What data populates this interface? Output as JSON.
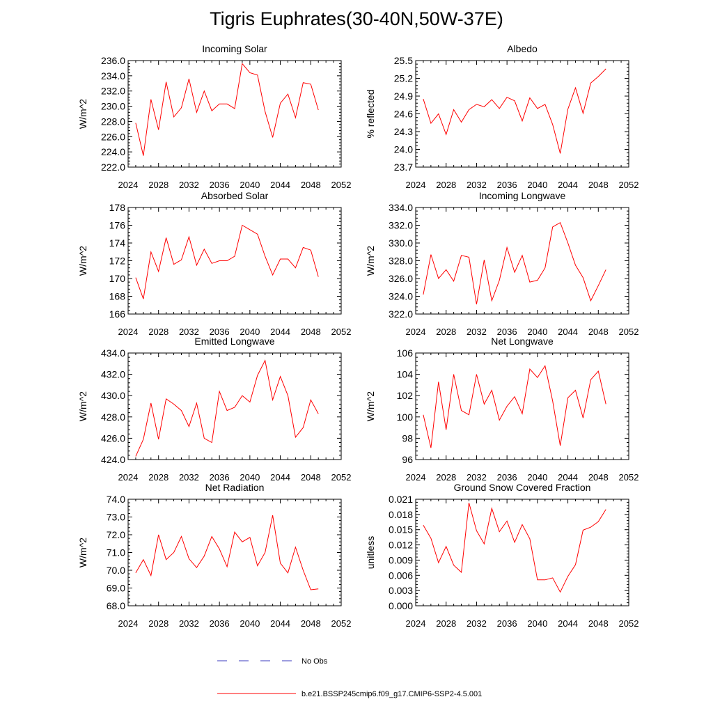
{
  "title": "Tigris Euphrates(30-40N,50W-37E)",
  "colors": {
    "series": "#ff0000",
    "obs": "#3b3bbf",
    "axis": "#000000"
  },
  "legend": {
    "obs_label": "No Obs",
    "model_label": "b.e21.BSSP245cmip6.f09_g17.CMIP6-SSP2-4.5.001"
  },
  "chart_data": [
    {
      "type": "line",
      "title": "Incoming Solar",
      "ylabel": "W/m^2",
      "xlim": [
        2024,
        2052
      ],
      "ylim": [
        222.0,
        236.0
      ],
      "xticks": [
        "2024",
        "2028",
        "2032",
        "2036",
        "2040",
        "2044",
        "2048",
        "2052"
      ],
      "yticks": [
        "222.0",
        "224.0",
        "226.0",
        "228.0",
        "230.0",
        "232.0",
        "234.0",
        "236.0"
      ],
      "x": [
        2025,
        2026,
        2027,
        2028,
        2029,
        2030,
        2031,
        2032,
        2033,
        2034,
        2035,
        2036,
        2037,
        2038,
        2039,
        2040,
        2041,
        2042,
        2043,
        2044,
        2045,
        2046,
        2047,
        2048,
        2049
      ],
      "series": [
        {
          "values": [
            227.8,
            223.5,
            230.9,
            226.9,
            233.2,
            228.6,
            229.8,
            233.6,
            229.2,
            232.0,
            229.4,
            230.3,
            230.3,
            229.7,
            235.6,
            234.4,
            234.1,
            229.3,
            225.9,
            230.4,
            231.6,
            228.5,
            233.1,
            232.9,
            229.5
          ]
        }
      ]
    },
    {
      "type": "line",
      "title": "Albedo",
      "ylabel": "% reflected",
      "xlim": [
        2024,
        2052
      ],
      "ylim": [
        23.7,
        25.5
      ],
      "xticks": [
        "2024",
        "2028",
        "2032",
        "2036",
        "2040",
        "2044",
        "2048",
        "2052"
      ],
      "yticks": [
        "23.7",
        "24.0",
        "24.3",
        "24.6",
        "24.9",
        "25.2",
        "25.5"
      ],
      "x": [
        2025,
        2026,
        2027,
        2028,
        2029,
        2030,
        2031,
        2032,
        2033,
        2034,
        2035,
        2036,
        2037,
        2038,
        2039,
        2040,
        2041,
        2042,
        2043,
        2044,
        2045,
        2046,
        2047,
        2048,
        2049
      ],
      "series": [
        {
          "values": [
            24.85,
            24.44,
            24.6,
            24.25,
            24.67,
            24.46,
            24.67,
            24.76,
            24.72,
            24.84,
            24.69,
            24.88,
            24.82,
            24.48,
            24.87,
            24.69,
            24.76,
            24.42,
            23.93,
            24.68,
            25.04,
            24.61,
            25.12,
            25.23,
            25.36
          ]
        }
      ]
    },
    {
      "type": "line",
      "title": "Absorbed Solar",
      "ylabel": "W/m^2",
      "xlim": [
        2024,
        2052
      ],
      "ylim": [
        166,
        178
      ],
      "xticks": [
        "2024",
        "2028",
        "2032",
        "2036",
        "2040",
        "2044",
        "2048",
        "2052"
      ],
      "yticks": [
        "166",
        "168",
        "170",
        "172",
        "174",
        "176",
        "178"
      ],
      "x": [
        2025,
        2026,
        2027,
        2028,
        2029,
        2030,
        2031,
        2032,
        2033,
        2034,
        2035,
        2036,
        2037,
        2038,
        2039,
        2040,
        2041,
        2042,
        2043,
        2044,
        2045,
        2046,
        2047,
        2048,
        2049
      ],
      "series": [
        {
          "values": [
            170.1,
            167.7,
            173.0,
            170.8,
            174.6,
            171.6,
            172.1,
            174.7,
            171.5,
            173.3,
            171.7,
            172.0,
            172.0,
            172.5,
            176.0,
            175.5,
            175.0,
            172.5,
            170.4,
            172.2,
            172.2,
            171.2,
            173.5,
            173.2,
            170.2
          ]
        }
      ]
    },
    {
      "type": "line",
      "title": "Incoming Longwave",
      "ylabel": "W/m^2",
      "xlim": [
        2024,
        2052
      ],
      "ylim": [
        322.0,
        334.0
      ],
      "xticks": [
        "2024",
        "2028",
        "2032",
        "2036",
        "2040",
        "2044",
        "2048",
        "2052"
      ],
      "yticks": [
        "322.0",
        "324.0",
        "326.0",
        "328.0",
        "330.0",
        "332.0",
        "334.0"
      ],
      "x": [
        2025,
        2026,
        2027,
        2028,
        2029,
        2030,
        2031,
        2032,
        2033,
        2034,
        2035,
        2036,
        2037,
        2038,
        2039,
        2040,
        2041,
        2042,
        2043,
        2044,
        2045,
        2046,
        2047,
        2048,
        2049
      ],
      "series": [
        {
          "values": [
            324.2,
            328.7,
            326.0,
            327.0,
            325.7,
            328.6,
            328.4,
            323.1,
            328.1,
            323.5,
            325.8,
            329.5,
            326.7,
            328.6,
            325.6,
            325.8,
            327.2,
            331.8,
            332.3,
            330.0,
            327.5,
            326.1,
            323.5,
            325.2,
            327.0
          ]
        }
      ]
    },
    {
      "type": "line",
      "title": "Emitted Longwave",
      "ylabel": "W/m^2",
      "xlim": [
        2024,
        2052
      ],
      "ylim": [
        424.0,
        434.0
      ],
      "xticks": [
        "2024",
        "2028",
        "2032",
        "2036",
        "2040",
        "2044",
        "2048",
        "2052"
      ],
      "yticks": [
        "424.0",
        "426.0",
        "428.0",
        "430.0",
        "432.0",
        "434.0"
      ],
      "x": [
        2025,
        2026,
        2027,
        2028,
        2029,
        2030,
        2031,
        2032,
        2033,
        2034,
        2035,
        2036,
        2037,
        2038,
        2039,
        2040,
        2041,
        2042,
        2043,
        2044,
        2045,
        2046,
        2047,
        2048,
        2049
      ],
      "series": [
        {
          "values": [
            424.3,
            425.9,
            429.3,
            425.9,
            429.7,
            429.2,
            428.6,
            427.1,
            429.3,
            426.0,
            425.6,
            430.4,
            428.6,
            428.9,
            430.0,
            429.4,
            431.9,
            433.3,
            429.6,
            431.8,
            430.0,
            426.1,
            427.0,
            429.6,
            428.3
          ]
        }
      ]
    },
    {
      "type": "line",
      "title": "Net Longwave",
      "ylabel": "W/m^2",
      "xlim": [
        2024,
        2052
      ],
      "ylim": [
        96,
        106
      ],
      "xticks": [
        "2024",
        "2028",
        "2032",
        "2036",
        "2040",
        "2044",
        "2048",
        "2052"
      ],
      "yticks": [
        "96",
        "98",
        "100",
        "102",
        "104",
        "106"
      ],
      "x": [
        2025,
        2026,
        2027,
        2028,
        2029,
        2030,
        2031,
        2032,
        2033,
        2034,
        2035,
        2036,
        2037,
        2038,
        2039,
        2040,
        2041,
        2042,
        2043,
        2044,
        2045,
        2046,
        2047,
        2048,
        2049
      ],
      "series": [
        {
          "values": [
            100.2,
            97.1,
            103.3,
            98.8,
            104.0,
            100.6,
            100.2,
            104.0,
            101.2,
            102.5,
            99.7,
            101.0,
            101.9,
            100.3,
            104.5,
            103.7,
            104.8,
            101.5,
            97.3,
            101.8,
            102.5,
            99.9,
            103.5,
            104.3,
            101.2
          ]
        }
      ]
    },
    {
      "type": "line",
      "title": "Net Radiation",
      "ylabel": "W/m^2",
      "xlim": [
        2024,
        2052
      ],
      "ylim": [
        68.0,
        74.0
      ],
      "xticks": [
        "2024",
        "2028",
        "2032",
        "2036",
        "2040",
        "2044",
        "2048",
        "2052"
      ],
      "yticks": [
        "68.0",
        "69.0",
        "70.0",
        "71.0",
        "72.0",
        "73.0",
        "74.0"
      ],
      "x": [
        2025,
        2026,
        2027,
        2028,
        2029,
        2030,
        2031,
        2032,
        2033,
        2034,
        2035,
        2036,
        2037,
        2038,
        2039,
        2040,
        2041,
        2042,
        2043,
        2044,
        2045,
        2046,
        2047,
        2048,
        2049
      ],
      "series": [
        {
          "values": [
            69.85,
            70.6,
            69.7,
            72.0,
            70.6,
            71.0,
            71.9,
            70.65,
            70.15,
            70.8,
            71.9,
            71.2,
            70.2,
            72.15,
            71.6,
            71.85,
            70.25,
            71.0,
            73.1,
            70.4,
            69.85,
            71.3,
            70.0,
            68.9,
            68.95
          ]
        }
      ]
    },
    {
      "type": "line",
      "title": "Ground Snow Covered Fraction",
      "ylabel": "unitless",
      "xlim": [
        2024,
        2052
      ],
      "ylim": [
        0.0,
        0.021
      ],
      "xticks": [
        "2024",
        "2028",
        "2032",
        "2036",
        "2040",
        "2044",
        "2048",
        "2052"
      ],
      "yticks": [
        "0.000",
        "0.003",
        "0.006",
        "0.009",
        "0.012",
        "0.015",
        "0.018",
        "0.021"
      ],
      "x": [
        2025,
        2026,
        2027,
        2028,
        2029,
        2030,
        2031,
        2032,
        2033,
        2034,
        2035,
        2036,
        2037,
        2038,
        2039,
        2040,
        2041,
        2042,
        2043,
        2044,
        2045,
        2046,
        2047,
        2048,
        2049
      ],
      "series": [
        {
          "values": [
            0.0159,
            0.0133,
            0.0085,
            0.0117,
            0.008,
            0.0066,
            0.0203,
            0.0148,
            0.0122,
            0.0192,
            0.0146,
            0.0167,
            0.0125,
            0.016,
            0.0132,
            0.0051,
            0.0051,
            0.0055,
            0.0027,
            0.0058,
            0.0081,
            0.0149,
            0.0155,
            0.0166,
            0.019
          ]
        }
      ]
    }
  ]
}
